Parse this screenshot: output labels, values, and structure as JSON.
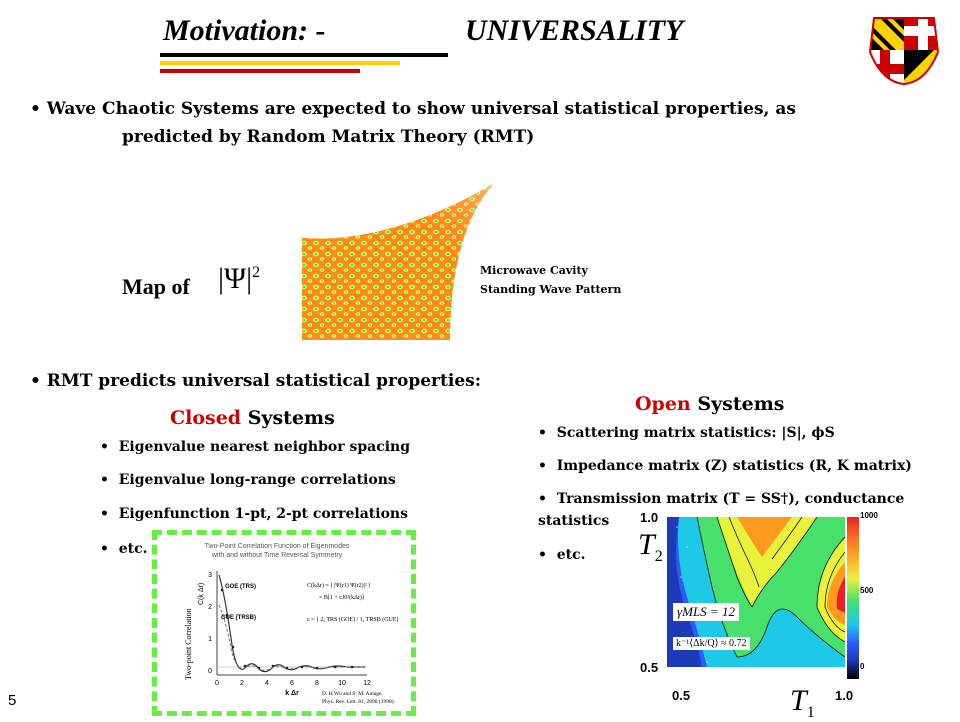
{
  "title": {
    "left": "Motivation: -",
    "right": "UNIVERSALITY"
  },
  "intro": {
    "line1": "Wave Chaotic Systems are expected to show universal statistical properties, as",
    "line2": "predicted by Random Matrix Theory (RMT)"
  },
  "cavity": {
    "map_label": "Map of",
    "psi_symbol": "|Ψ|",
    "psi_power": "2",
    "caption_line1": "Microwave Cavity",
    "caption_line2": "Standing Wave Pattern"
  },
  "rmt": {
    "line": "RMT predicts universal statistical properties:"
  },
  "closed": {
    "title_colored": "Closed",
    "title_rest": " Systems",
    "items": [
      "Eigenvalue nearest neighbor spacing",
      "Eigenvalue long-range correlations",
      "Eigenfunction 1-pt, 2-pt correlations",
      "etc."
    ]
  },
  "open": {
    "title_colored": "Open",
    "title_rest": " Systems",
    "items": [
      "Scattering matrix statistics: |S|, ϕS",
      "Impedance matrix (Z) statistics (R, K matrix)",
      "Transmission matrix (T = SS†), conductance",
      "statistics",
      "etc."
    ]
  },
  "correlation_plot": {
    "title_line1": "Two-Point Correlation Function of Eigenmodes",
    "title_line2": "with and without Time Reversal Symmetry",
    "ylabel": "Two-point Correlation",
    "ylabel2": "C(k Δr)",
    "xlabel": "k Δr",
    "yticks": [
      "3",
      "2",
      "1",
      "0"
    ],
    "xticks": [
      "0",
      "2",
      "4",
      "6",
      "8",
      "10",
      "12"
    ],
    "goe_label": "GOE (TRS)",
    "gue_label": "GUE (TRSB)",
    "formula1": "C(kΔr) = ⟨ |Ψ(r1) Ψ(r2)|² ⟩",
    "formula2": "= B[1 + cJ0²(kΔr)]",
    "formula3": "c = { 2, TRS (GOE) / 1, TRSB (GUE)",
    "citation1": "D. H Wu and S. M. Anlage,",
    "citation2": "Phys. Rev. Lett. 81, 2890 (1998)."
  },
  "contour_plot": {
    "y_top": "1.0",
    "y_bottom": "0.5",
    "x_left": "0.5",
    "x_right": "1.0",
    "ylabel": "T",
    "ylabel_sub": "2",
    "xlabel": "T",
    "xlabel_sub": "1",
    "colorbar_ticks": [
      "1000",
      "500",
      "0"
    ],
    "gamma_label": "γMLS = 12",
    "k_label": "k⁻¹⟨Δk/Q⟩ ≈ 0.72"
  },
  "page_number": "5",
  "colors": {
    "red": "#cc0000",
    "yellow": "#ffd200",
    "black": "#000000",
    "green_dash": "#66ee44"
  }
}
